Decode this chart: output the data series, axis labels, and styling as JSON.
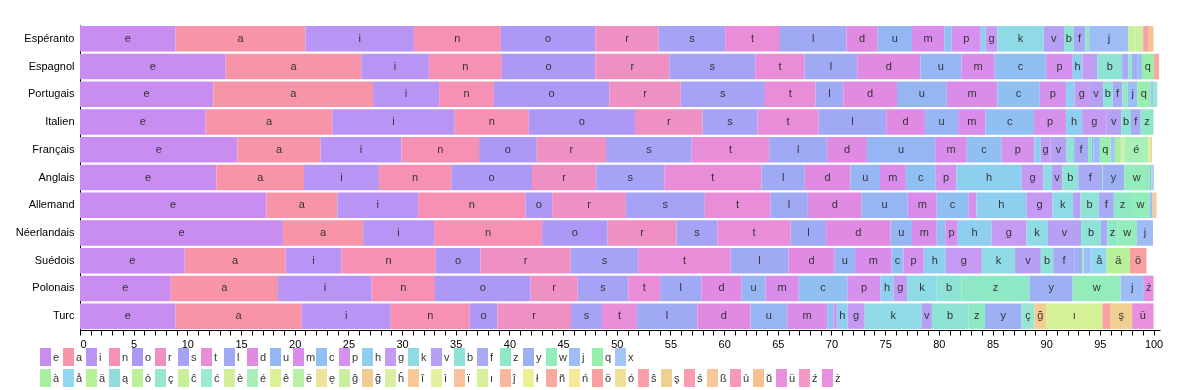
{
  "chart_data": {
    "type": "bar",
    "orientation": "horizontal",
    "stacked": true,
    "legend": "bottom",
    "categories": [
      "Espéranto",
      "Espagnol",
      "Portugais",
      "Italien",
      "Français",
      "Anglais",
      "Allemand",
      "Néerlandais",
      "Suédois",
      "Polonais",
      "Turc"
    ],
    "xlim": [
      0,
      100.6
    ],
    "xticks": [
      0,
      {
        "value": 1,
        "label": null
      },
      {
        "value": 2,
        "label": null
      },
      {
        "value": 3,
        "label": null
      },
      {
        "value": 4,
        "label": null
      },
      5,
      {
        "value": 6,
        "label": null
      },
      {
        "value": 7,
        "label": null
      },
      {
        "value": 8,
        "label": null
      },
      {
        "value": 9,
        "label": null
      },
      10,
      {
        "value": 11,
        "label": null
      },
      {
        "value": 12,
        "label": null
      },
      {
        "value": 13,
        "label": null
      },
      {
        "value": 14,
        "label": null
      },
      15,
      {
        "value": 16,
        "label": null
      },
      {
        "value": 17,
        "label": null
      },
      {
        "value": 18,
        "label": null
      },
      {
        "value": 19,
        "label": null
      },
      20,
      {
        "value": 21,
        "label": null
      },
      {
        "value": 22,
        "label": null
      },
      {
        "value": 23,
        "label": null
      },
      {
        "value": 24,
        "label": null
      },
      25,
      {
        "value": 26,
        "label": null
      },
      {
        "value": 27,
        "label": null
      },
      {
        "value": 28,
        "label": null
      },
      {
        "value": 29,
        "label": null
      },
      30,
      {
        "value": 31,
        "label": null
      },
      {
        "value": 32,
        "label": null
      },
      {
        "value": 33,
        "label": null
      },
      {
        "value": 34,
        "label": null
      },
      35,
      {
        "value": 36,
        "label": null
      },
      {
        "value": 37,
        "label": null
      },
      {
        "value": 38,
        "label": null
      },
      {
        "value": 39,
        "label": null
      },
      40,
      {
        "value": 41,
        "label": null
      },
      {
        "value": 42,
        "label": null
      },
      {
        "value": 43,
        "label": null
      },
      {
        "value": 44,
        "label": null
      },
      45,
      {
        "value": 46,
        "label": null
      },
      {
        "value": 47,
        "label": null
      },
      {
        "value": 48,
        "label": null
      },
      {
        "value": 49,
        "label": null
      },
      50,
      {
        "value": 51,
        "label": null
      },
      {
        "value": 52,
        "label": null
      },
      {
        "value": 53,
        "label": null
      },
      {
        "value": 54,
        "label": null
      },
      55,
      {
        "value": 56,
        "label": null
      },
      {
        "value": 57,
        "label": null
      },
      {
        "value": 58,
        "label": null
      },
      {
        "value": 59,
        "label": null
      },
      60,
      {
        "value": 61,
        "label": null
      },
      {
        "value": 62,
        "label": null
      },
      {
        "value": 63,
        "label": null
      },
      {
        "value": 64,
        "label": null
      },
      65,
      {
        "value": 66,
        "label": null
      },
      {
        "value": 67,
        "label": null
      },
      {
        "value": 68,
        "label": null
      },
      {
        "value": 69,
        "label": null
      },
      70,
      {
        "value": 71,
        "label": null
      },
      {
        "value": 72,
        "label": null
      },
      {
        "value": 73,
        "label": null
      },
      {
        "value": 74,
        "label": null
      },
      75,
      {
        "value": 76,
        "label": null
      },
      {
        "value": 77,
        "label": null
      },
      {
        "value": 78,
        "label": null
      },
      {
        "value": 79,
        "label": null
      },
      80,
      {
        "value": 81,
        "label": null
      },
      {
        "value": 82,
        "label": null
      },
      {
        "value": 83,
        "label": null
      },
      {
        "value": 84,
        "label": null
      },
      85,
      {
        "value": 86,
        "label": null
      },
      {
        "value": 87,
        "label": null
      },
      {
        "value": 88,
        "label": null
      },
      {
        "value": 89,
        "label": null
      },
      90,
      {
        "value": 91,
        "label": null
      },
      {
        "value": 92,
        "label": null
      },
      {
        "value": 93,
        "label": null
      },
      {
        "value": 94,
        "label": null
      },
      95,
      {
        "value": 96,
        "label": null
      },
      {
        "value": 97,
        "label": null
      },
      {
        "value": 98,
        "label": null
      },
      {
        "value": 99,
        "label": null
      },
      100
    ],
    "series": [
      {
        "name": "e",
        "color": "#c98cf0",
        "values": [
          8.91,
          13.57,
          12.42,
          11.7,
          14.66,
          12.7,
          17.36,
          18.9,
          9.75,
          8.45,
          8.91
        ]
      },
      {
        "name": "a",
        "color": "#f894a8",
        "values": [
          12.09,
          12.63,
          14.88,
          11.8,
          7.76,
          8.17,
          6.62,
          7.47,
          9.41,
          10.0,
          11.74
        ]
      },
      {
        "name": "i",
        "color": "#b894f4",
        "values": [
          10.1,
          6.3,
          6.15,
          11.4,
          7.52,
          6.97,
          7.52,
          6.61,
          5.19,
          8.72,
          8.29
        ]
      },
      {
        "name": "n",
        "color": "#f690b4",
        "values": [
          8.1,
          6.8,
          5.11,
          6.9,
          7.23,
          6.75,
          10.0,
          10.07,
          8.79,
          5.9,
          7.36
        ]
      },
      {
        "name": "o",
        "color": "#ad98f5",
        "values": [
          8.8,
          8.7,
          10.74,
          9.9,
          5.38,
          7.51,
          2.48,
          6.1,
          4.16,
          8.9,
          2.57
        ]
      },
      {
        "name": "r",
        "color": "#ef90c2",
        "values": [
          5.9,
          6.9,
          6.66,
          6.3,
          6.45,
          5.99,
          6.87,
          6.41,
          8.4,
          4.39,
          6.87
        ]
      },
      {
        "name": "s",
        "color": "#a6a2f6",
        "values": [
          6.2,
          8.0,
          7.84,
          5.1,
          7.98,
          6.33,
          7.35,
          3.81,
          6.3,
          4.71,
          2.88
        ]
      },
      {
        "name": "t",
        "color": "#e98dd8",
        "values": [
          5.1,
          4.6,
          4.7,
          5.7,
          7.22,
          9.06,
          6.1,
          6.83,
          8.6,
          2.97,
          3.25
        ]
      },
      {
        "name": "l",
        "color": "#a0aaf4",
        "values": [
          6.2,
          4.9,
          2.6,
          6.3,
          5.4,
          4.03,
          3.5,
          3.3,
          5.4,
          3.84,
          5.63
        ]
      },
      {
        "name": "d",
        "color": "#e08ae2",
        "values": [
          2.9,
          5.87,
          5.0,
          3.6,
          3.7,
          4.25,
          5.0,
          6.0,
          4.3,
          3.75,
          4.96
        ]
      },
      {
        "name": "u",
        "color": "#96b6f3",
        "values": [
          3.2,
          3.83,
          4.64,
          3.1,
          6.36,
          2.76,
          4.3,
          2.0,
          1.9,
          2.23,
          3.41
        ]
      },
      {
        "name": "m",
        "color": "#da8ceb",
        "values": [
          3.0,
          3.1,
          4.72,
          2.55,
          2.94,
          2.41,
          2.7,
          2.3,
          3.4,
          3.09,
          3.73
        ]
      },
      {
        "name": "c",
        "color": "#90c0f2",
        "values": [
          0.7,
          4.8,
          3.94,
          4.51,
          3.23,
          2.78,
          2.95,
          0.8,
          1.1,
          4.53,
          0.6
        ]
      },
      {
        "name": "p",
        "color": "#d690ee",
        "values": [
          2.7,
          2.47,
          2.45,
          2.99,
          3.07,
          1.93,
          0.75,
          1.16,
          1.9,
          3.09,
          0.3
        ]
      },
      {
        "name": "h",
        "color": "#8ecff0",
        "values": [
          0.46,
          0.9,
          0.8,
          1.5,
          0.6,
          6.09,
          4.65,
          3.14,
          2.05,
          1.23,
          1.0
        ]
      },
      {
        "name": "g",
        "color": "#c69af2",
        "values": [
          1.1,
          0.8,
          1.35,
          2.25,
          0.9,
          2.02,
          2.45,
          3.25,
          3.35,
          1.24,
          1.6
        ]
      },
      {
        "name": "k",
        "color": "#8edbe6",
        "values": [
          4.3,
          null,
          null,
          null,
          null,
          0.77,
          1.9,
          2.0,
          3.1,
          2.76,
          5.3
        ]
      },
      {
        "name": "v",
        "color": "#b6a0f4",
        "values": [
          1.9,
          0.6,
          1.3,
          1.4,
          1.5,
          0.98,
          0.7,
          3.1,
          2.4,
          null,
          0.95
        ]
      },
      {
        "name": "b",
        "color": "#8ee2d6",
        "values": [
          0.9,
          2.3,
          0.9,
          0.9,
          0.7,
          1.49,
          1.7,
          1.85,
          1.15,
          2.3,
          3.4
        ]
      },
      {
        "name": "f",
        "color": "#a8aaf6",
        "values": [
          1.1,
          0.6,
          0.9,
          0.9,
          1.3,
          2.23,
          1.4,
          0.6,
          2.0,
          null,
          null
        ]
      },
      {
        "name": "z",
        "color": "#8ee8c6",
        "values": [
          0.35,
          0.3,
          0.5,
          1.2,
          0.35,
          0.07,
          1.6,
          0.95,
          null,
          6.36,
          1.55
        ]
      },
      {
        "name": "y",
        "color": "#9eb0f4",
        "values": [
          null,
          0.5,
          null,
          null,
          0.15,
          1.97,
          null,
          null,
          0.7,
          4.01,
          3.4
        ]
      },
      {
        "name": "w",
        "color": "#94ecba",
        "values": [
          null,
          null,
          null,
          null,
          null,
          2.36,
          1.75,
          1.8,
          0.14,
          4.47,
          null
        ]
      },
      {
        "name": "j",
        "color": "#9ebcf6",
        "values": [
          3.65,
          0.45,
          0.9,
          null,
          0.6,
          0.15,
          0.25,
          1.5,
          0.6,
          2.16,
          null
        ]
      },
      {
        "name": "q",
        "color": "#98eeac",
        "values": [
          null,
          1.1,
          1.2,
          null,
          1.0,
          0.1,
          null,
          null,
          null,
          null,
          null
        ]
      },
      {
        "name": "x",
        "color": "#a2c4f6",
        "values": [
          null,
          null,
          0.25,
          null,
          0.4,
          0.15,
          0.03,
          null,
          0.15,
          null,
          null
        ]
      },
      {
        "name": "à",
        "color": "#a8f0a0",
        "values": [
          null,
          null,
          null,
          null,
          0.5,
          null,
          null,
          null,
          null,
          null,
          null
        ]
      },
      {
        "name": "å",
        "color": "#92d8f0",
        "values": [
          null,
          null,
          null,
          null,
          null,
          null,
          null,
          null,
          1.4,
          null,
          null
        ]
      },
      {
        "name": "ä",
        "color": "#b8f098",
        "values": [
          null,
          null,
          null,
          null,
          null,
          null,
          null,
          null,
          2.15,
          null,
          null
        ]
      },
      {
        "name": "ą",
        "color": "#94dcdc",
        "values": [
          null,
          null,
          null,
          null,
          null,
          null,
          null,
          null,
          null,
          null,
          null
        ]
      },
      {
        "name": "ò",
        "color": "#bef098",
        "values": [
          null,
          null,
          null,
          null,
          null,
          null,
          null,
          null,
          null,
          null,
          null
        ]
      },
      {
        "name": "ç",
        "color": "#98e6d0",
        "values": [
          null,
          null,
          0.4,
          null,
          0.1,
          null,
          null,
          null,
          null,
          null,
          1.2
        ]
      },
      {
        "name": "ĉ",
        "color": "#c8f098",
        "values": [
          0.66,
          null,
          null,
          null,
          null,
          null,
          null,
          null,
          null,
          null,
          null
        ]
      },
      {
        "name": "ć",
        "color": "#9cead0",
        "values": [
          null,
          null,
          null,
          null,
          null,
          null,
          null,
          null,
          null,
          null,
          null
        ]
      },
      {
        "name": "è",
        "color": "#d2f098",
        "values": [
          null,
          null,
          null,
          null,
          0.3,
          null,
          null,
          null,
          null,
          null,
          null
        ]
      },
      {
        "name": "é",
        "color": "#a8f0b8",
        "values": [
          null,
          null,
          null,
          null,
          2.2,
          null,
          null,
          null,
          null,
          null,
          null
        ]
      },
      {
        "name": "ê",
        "color": "#dcf098",
        "values": [
          null,
          null,
          null,
          null,
          0.25,
          null,
          null,
          null,
          null,
          null,
          null
        ]
      },
      {
        "name": "ë",
        "color": "#b8f0a8",
        "values": [
          null,
          null,
          null,
          null,
          null,
          null,
          null,
          null,
          null,
          null,
          null
        ]
      },
      {
        "name": "ę",
        "color": "#ece49c",
        "values": [
          null,
          null,
          null,
          null,
          null,
          null,
          null,
          null,
          null,
          null,
          null
        ]
      },
      {
        "name": "ĝ",
        "color": "#c8eea0",
        "values": [
          0.71,
          null,
          null,
          null,
          null,
          null,
          null,
          null,
          null,
          null,
          null
        ]
      },
      {
        "name": "ğ",
        "color": "#f2cc94",
        "values": [
          null,
          null,
          null,
          null,
          null,
          null,
          null,
          null,
          null,
          null,
          1.1
        ]
      },
      {
        "name": "ĥ",
        "color": "#d8f0a0",
        "values": [
          null,
          null,
          null,
          null,
          null,
          null,
          null,
          null,
          null,
          null,
          null
        ]
      },
      {
        "name": "î",
        "color": "#f8c898",
        "values": [
          null,
          null,
          null,
          null,
          null,
          null,
          null,
          null,
          null,
          null,
          null
        ]
      },
      {
        "name": "ì",
        "color": "#e2f0a0",
        "values": [
          null,
          null,
          null,
          null,
          null,
          null,
          null,
          null,
          null,
          null,
          null
        ]
      },
      {
        "name": "ï",
        "color": "#f8c2a0",
        "values": [
          null,
          null,
          null,
          null,
          0.1,
          null,
          null,
          null,
          null,
          null,
          null
        ]
      },
      {
        "name": "ı",
        "color": "#d6f098",
        "values": [
          null,
          null,
          null,
          null,
          null,
          null,
          null,
          null,
          null,
          null,
          5.25
        ]
      },
      {
        "name": "ĵ",
        "color": "#f8b8a0",
        "values": [
          null,
          null,
          null,
          null,
          null,
          null,
          null,
          null,
          null,
          null,
          null
        ]
      },
      {
        "name": "ł",
        "color": "#eef098",
        "values": [
          null,
          null,
          null,
          null,
          null,
          null,
          null,
          null,
          null,
          null,
          null
        ]
      },
      {
        "name": "ñ",
        "color": "#f8aaa0",
        "values": [
          null,
          0.5,
          null,
          null,
          null,
          null,
          null,
          null,
          null,
          null,
          null
        ]
      },
      {
        "name": "ń",
        "color": "#f6e898",
        "values": [
          null,
          null,
          null,
          null,
          null,
          null,
          null,
          null,
          null,
          null,
          null
        ]
      },
      {
        "name": "ö",
        "color": "#f8a0a0",
        "values": [
          null,
          null,
          null,
          null,
          null,
          null,
          null,
          null,
          1.55,
          null,
          0.75
        ]
      },
      {
        "name": "ó",
        "color": "#f0e09a",
        "values": [
          null,
          null,
          null,
          null,
          null,
          null,
          null,
          null,
          null,
          null,
          null
        ]
      },
      {
        "name": "ŝ",
        "color": "#f8a0aa",
        "values": [
          0.46,
          null,
          null,
          null,
          null,
          null,
          null,
          null,
          null,
          null,
          null
        ]
      },
      {
        "name": "ş",
        "color": "#f0d090",
        "values": [
          null,
          null,
          null,
          null,
          null,
          null,
          null,
          null,
          null,
          null,
          2.0
        ]
      },
      {
        "name": "ś",
        "color": "#f89cb0",
        "values": [
          null,
          null,
          null,
          null,
          null,
          null,
          null,
          null,
          null,
          null,
          null
        ]
      },
      {
        "name": "ß",
        "color": "#f8c898",
        "values": [
          null,
          null,
          null,
          null,
          null,
          null,
          0.35,
          null,
          null,
          null,
          null
        ]
      },
      {
        "name": "ù",
        "color": "#f79ab8",
        "values": [
          null,
          null,
          null,
          null,
          null,
          null,
          null,
          null,
          null,
          null,
          null
        ]
      },
      {
        "name": "ŭ",
        "color": "#f8c090",
        "values": [
          0.5,
          null,
          null,
          null,
          null,
          null,
          null,
          null,
          null,
          null,
          null
        ]
      },
      {
        "name": "ü",
        "color": "#e890dc",
        "values": [
          null,
          null,
          null,
          null,
          null,
          null,
          null,
          null,
          null,
          null,
          2.0
        ]
      },
      {
        "name": "ź",
        "color": "#f498c8",
        "values": [
          null,
          null,
          null,
          null,
          null,
          null,
          null,
          null,
          null,
          null,
          null
        ]
      },
      {
        "name": "ż",
        "color": "#e890e0",
        "values": [
          null,
          null,
          null,
          null,
          null,
          null,
          null,
          null,
          null,
          0.9,
          null
        ]
      }
    ]
  }
}
